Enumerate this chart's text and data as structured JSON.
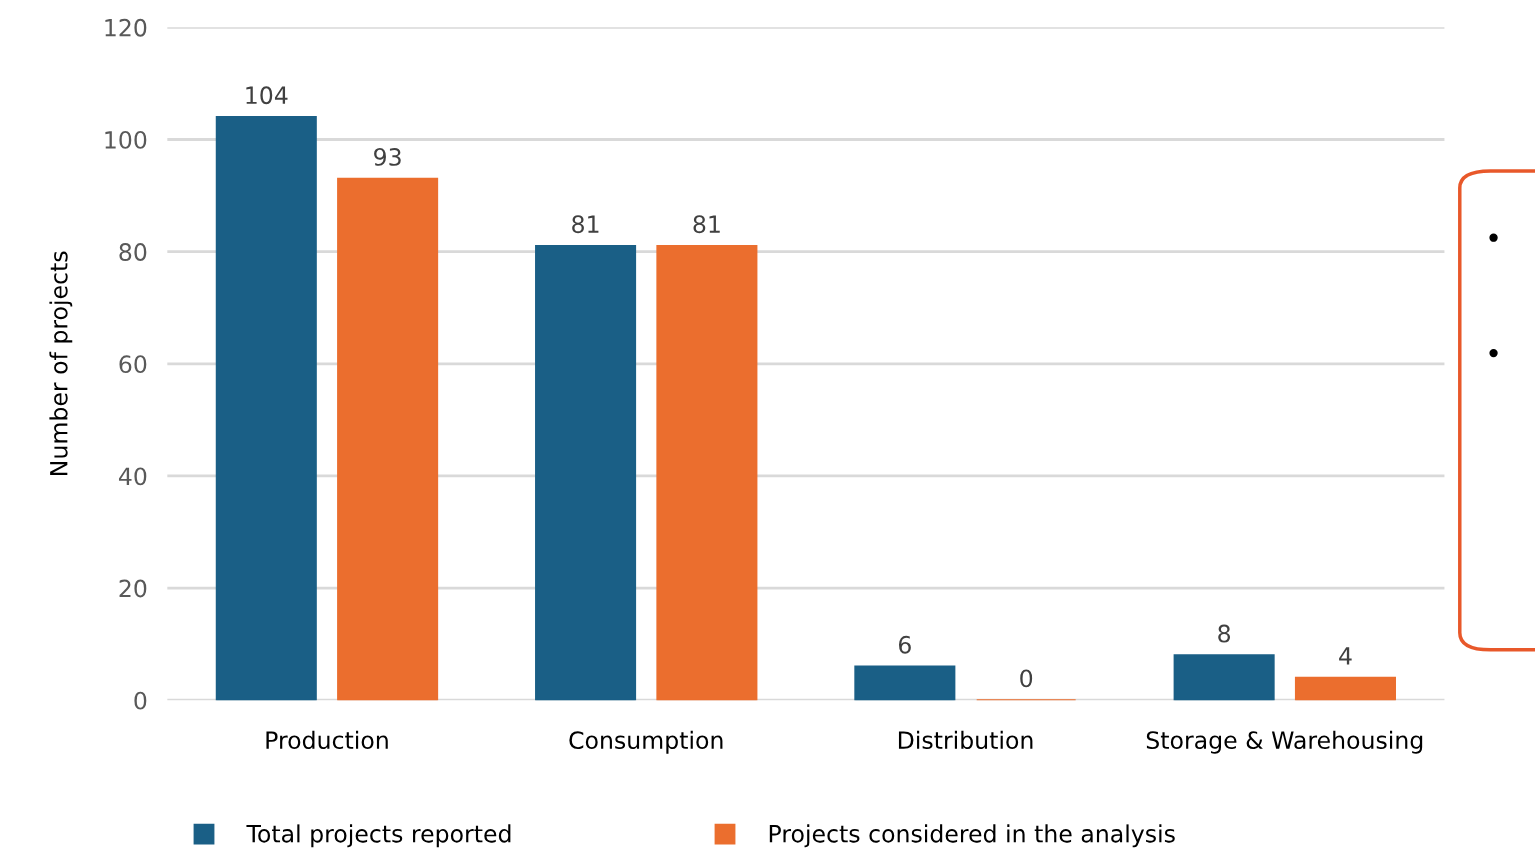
{
  "chart_data": {
    "type": "bar",
    "ylabel": "Number of projects",
    "categories": [
      "Production",
      "Consumption",
      "Distribution",
      "Storage & Warehousing"
    ],
    "series": [
      {
        "name": "Total projects reported",
        "color": "#1a5f86",
        "values": [
          104,
          81,
          6,
          8
        ]
      },
      {
        "name": "Projects considered in the analysis",
        "color": "#eb6e2e",
        "values": [
          93,
          81,
          0,
          4
        ]
      }
    ],
    "ylim": [
      0,
      120
    ],
    "yticks": [
      0,
      20,
      40,
      60,
      80,
      100,
      120
    ],
    "grid": "y",
    "legend": "bottom",
    "data_labels": true
  }
}
